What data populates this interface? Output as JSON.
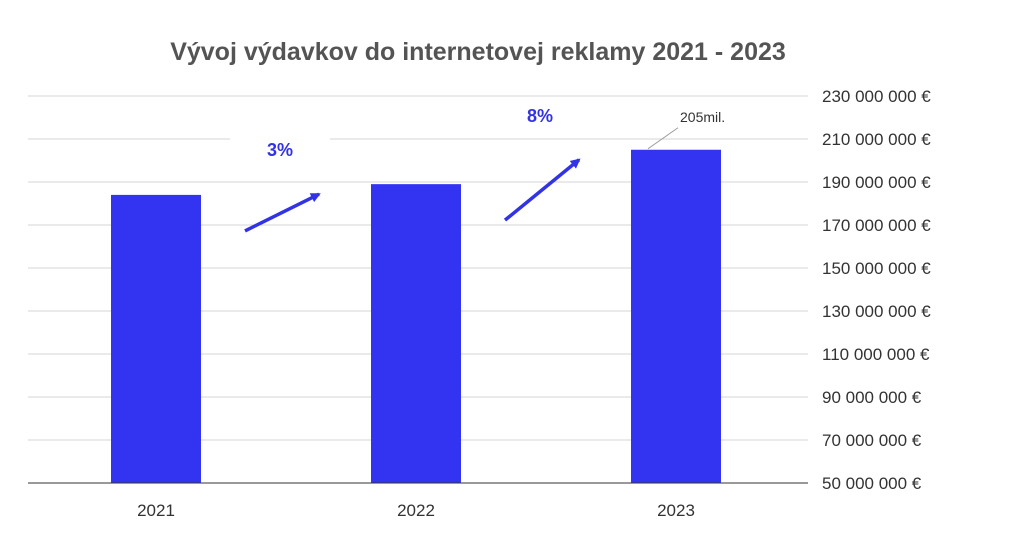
{
  "chart_data": {
    "type": "bar",
    "title": "Vývoj výdavkov do internetovej reklamy 2021 - 2023",
    "xlabel": "",
    "ylabel": "",
    "categories": [
      "2021",
      "2022",
      "2023"
    ],
    "values": [
      184000000,
      189000000,
      205000000
    ],
    "ylim": [
      50000000,
      230000000
    ],
    "y_ticks": [
      50000000,
      70000000,
      90000000,
      110000000,
      130000000,
      150000000,
      170000000,
      190000000,
      210000000,
      230000000
    ],
    "y_tick_labels": [
      "50 000 000 €",
      "70 000 000 €",
      "90 000 000 €",
      "110 000 000 €",
      "130 000 000 €",
      "150 000 000 €",
      "170 000 000 €",
      "190 000 000 €",
      "210 000 000 €",
      "230 000 000 €"
    ],
    "y_axis_side": "right",
    "grid": true,
    "legend": "none",
    "bar_color": "#3333f2",
    "annotations": [
      {
        "kind": "growth-arrow",
        "from": "2021",
        "to": "2022",
        "label": "3%"
      },
      {
        "kind": "growth-arrow",
        "from": "2022",
        "to": "2023",
        "label": "8%"
      },
      {
        "kind": "data-label",
        "category": "2023",
        "label": "205mil."
      }
    ],
    "annotation_color": "#3333e6"
  }
}
